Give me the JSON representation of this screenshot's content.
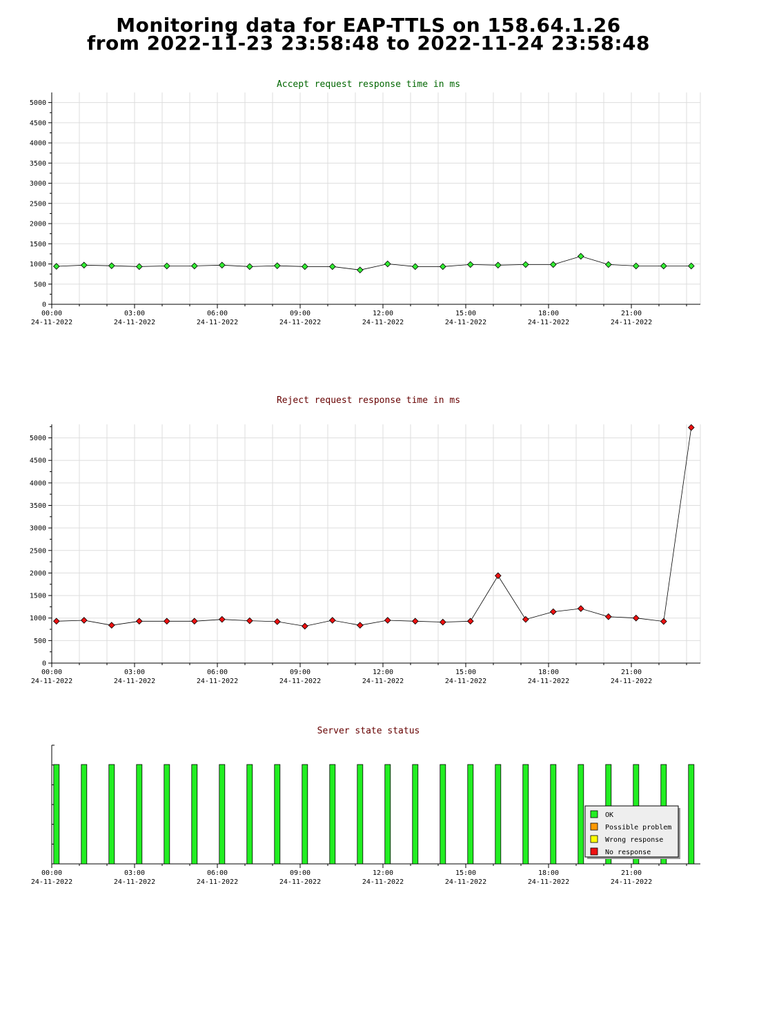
{
  "page": {
    "title_line1": "Monitoring data for EAP-TTLS on 158.64.1.26",
    "title_line2": "from 2022-11-23 23:58:48 to 2022-11-24 23:58:48"
  },
  "colors": {
    "accept_title": "#006600",
    "reject_title": "#660000",
    "status_title": "#660000",
    "accept_marker": "#33ee33",
    "reject_marker": "#ee1111",
    "grid": "#dddddd",
    "ok": "#22ee22",
    "possible_problem": "#ff9900",
    "wrong_response": "#ffff00",
    "no_response": "#ee1111"
  },
  "chart_data": [
    {
      "type": "line",
      "title": "Accept request response time in ms",
      "xlabel": "",
      "ylabel": "",
      "x_hours": [
        0.17,
        1.17,
        2.17,
        3.17,
        4.17,
        5.17,
        6.17,
        7.17,
        8.17,
        9.17,
        10.17,
        11.17,
        12.17,
        13.17,
        14.17,
        15.17,
        16.17,
        17.17,
        18.17,
        19.17,
        20.17,
        21.17,
        22.17,
        23.17
      ],
      "values": [
        940,
        970,
        955,
        935,
        950,
        950,
        970,
        935,
        955,
        935,
        935,
        850,
        1000,
        935,
        935,
        985,
        970,
        985,
        985,
        1190,
        985,
        950,
        950,
        950
      ],
      "ylim": [
        0,
        5250
      ],
      "yticks": [
        0,
        500,
        1000,
        1500,
        2000,
        2500,
        3000,
        3500,
        4000,
        4500,
        5000
      ],
      "xlim_hours": [
        0,
        23.5
      ],
      "xticks": [
        {
          "h": 0,
          "time": "00:00",
          "date": "24-11-2022"
        },
        {
          "h": 3,
          "time": "03:00",
          "date": "24-11-2022"
        },
        {
          "h": 6,
          "time": "06:00",
          "date": "24-11-2022"
        },
        {
          "h": 9,
          "time": "09:00",
          "date": "24-11-2022"
        },
        {
          "h": 12,
          "time": "12:00",
          "date": "24-11-2022"
        },
        {
          "h": 15,
          "time": "15:00",
          "date": "24-11-2022"
        },
        {
          "h": 18,
          "time": "18:00",
          "date": "24-11-2022"
        },
        {
          "h": 21,
          "time": "21:00",
          "date": "24-11-2022"
        }
      ],
      "grid": true
    },
    {
      "type": "line",
      "title": "Reject request response time in ms",
      "xlabel": "",
      "ylabel": "",
      "x_hours": [
        0.17,
        1.17,
        2.17,
        3.17,
        4.17,
        5.17,
        6.17,
        7.17,
        8.17,
        9.17,
        10.17,
        11.17,
        12.17,
        13.17,
        14.17,
        15.17,
        16.17,
        17.17,
        18.17,
        19.17,
        20.17,
        21.17,
        22.17,
        23.17
      ],
      "values": [
        930,
        950,
        840,
        930,
        930,
        930,
        970,
        940,
        920,
        820,
        950,
        840,
        950,
        930,
        910,
        930,
        1940,
        970,
        1140,
        1210,
        1030,
        1000,
        925,
        5230
      ],
      "ylim": [
        0,
        5300
      ],
      "yticks": [
        0,
        500,
        1000,
        1500,
        2000,
        2500,
        3000,
        3500,
        4000,
        4500,
        5000
      ],
      "xlim_hours": [
        0,
        23.5
      ],
      "xticks": [
        {
          "h": 0,
          "time": "00:00",
          "date": "24-11-2022"
        },
        {
          "h": 3,
          "time": "03:00",
          "date": "24-11-2022"
        },
        {
          "h": 6,
          "time": "06:00",
          "date": "24-11-2022"
        },
        {
          "h": 9,
          "time": "09:00",
          "date": "24-11-2022"
        },
        {
          "h": 12,
          "time": "12:00",
          "date": "24-11-2022"
        },
        {
          "h": 15,
          "time": "15:00",
          "date": "24-11-2022"
        },
        {
          "h": 18,
          "time": "18:00",
          "date": "24-11-2022"
        },
        {
          "h": 21,
          "time": "21:00",
          "date": "24-11-2022"
        }
      ],
      "grid": true
    },
    {
      "type": "bar",
      "title": "Server state status",
      "x_hours": [
        0.17,
        1.17,
        2.17,
        3.17,
        4.17,
        5.17,
        6.17,
        7.17,
        8.17,
        9.17,
        10.17,
        11.17,
        12.17,
        13.17,
        14.17,
        15.17,
        16.17,
        17.17,
        18.17,
        19.17,
        20.17,
        21.17,
        22.17,
        23.17
      ],
      "states": [
        "OK",
        "OK",
        "OK",
        "OK",
        "OK",
        "OK",
        "OK",
        "OK",
        "OK",
        "OK",
        "OK",
        "OK",
        "OK",
        "OK",
        "OK",
        "OK",
        "OK",
        "OK",
        "OK",
        "OK",
        "OK",
        "OK",
        "OK",
        "OK"
      ],
      "xlim_hours": [
        0,
        23.5
      ],
      "xticks": [
        {
          "h": 0,
          "time": "00:00",
          "date": "24-11-2022"
        },
        {
          "h": 3,
          "time": "03:00",
          "date": "24-11-2022"
        },
        {
          "h": 6,
          "time": "06:00",
          "date": "24-11-2022"
        },
        {
          "h": 9,
          "time": "09:00",
          "date": "24-11-2022"
        },
        {
          "h": 12,
          "time": "12:00",
          "date": "24-11-2022"
        },
        {
          "h": 15,
          "time": "15:00",
          "date": "24-11-2022"
        },
        {
          "h": 18,
          "time": "18:00",
          "date": "24-11-2022"
        },
        {
          "h": 21,
          "time": "21:00",
          "date": "24-11-2022"
        }
      ],
      "legend": {
        "placement": "bottom-right",
        "items": [
          {
            "label": "OK",
            "color": "#22ee22"
          },
          {
            "label": "Possible problem",
            "color": "#ff9900"
          },
          {
            "label": "Wrong response",
            "color": "#ffff00"
          },
          {
            "label": "No response",
            "color": "#ee1111"
          }
        ]
      },
      "grid": false
    }
  ]
}
